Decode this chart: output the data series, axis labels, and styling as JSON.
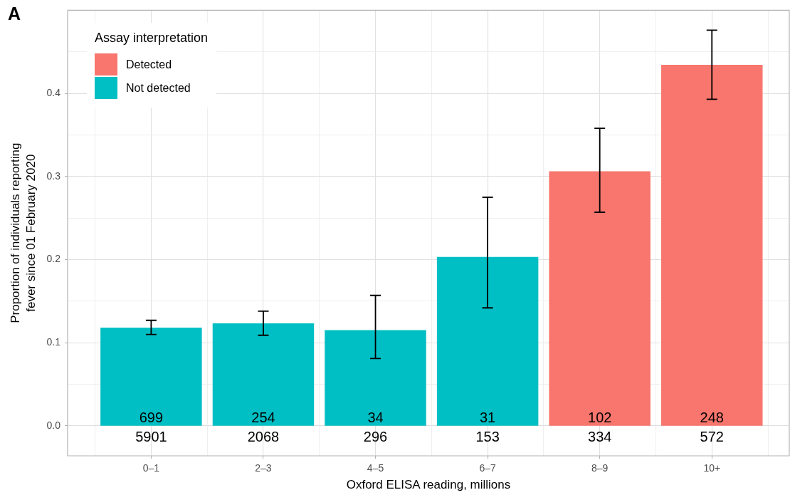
{
  "chart_data": {
    "type": "bar",
    "title": "A",
    "xlabel": "Oxford ELISA reading, millions",
    "ylabel": "Proportion of individuals reporting\nfever since 01 February 2020",
    "legend_title": "Assay interpretation",
    "legend": "top left",
    "grid": true,
    "categories": [
      "0–1",
      "2–3",
      "4–5",
      "6–7",
      "8–9",
      "10+"
    ],
    "series": [
      {
        "name": "Detected",
        "color": "#f8766d",
        "values": [
          null,
          null,
          null,
          null,
          0.306,
          0.434
        ],
        "errors": [
          null,
          null,
          null,
          null,
          [
            0.257,
            0.358
          ],
          [
            0.393,
            0.476
          ]
        ]
      },
      {
        "name": "Not detected",
        "color": "#00bfc4",
        "values": [
          0.118,
          0.123,
          0.115,
          0.203,
          null,
          null
        ],
        "errors": [
          [
            0.11,
            0.127
          ],
          [
            0.109,
            0.138
          ],
          [
            0.081,
            0.157
          ],
          [
            0.142,
            0.275
          ],
          null,
          null
        ]
      }
    ],
    "ylim": [
      -0.036,
      0.5
    ],
    "yticks": [
      {
        "value": 0,
        "label": "0.0"
      },
      0.1,
      0.2,
      0.3,
      0.4
    ],
    "annotations": [
      "699",
      "254",
      "34",
      "31",
      "102",
      "248",
      "5901",
      "2068",
      "296",
      "153",
      "334",
      "572"
    ]
  }
}
